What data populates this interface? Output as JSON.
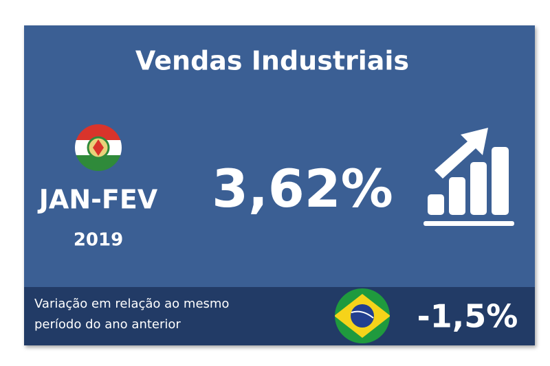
{
  "card": {
    "title": "Vendas Industriais",
    "period": "JAN-FEV",
    "year": "2019",
    "value": "3,62%",
    "footer": {
      "note_lines": [
        "Variação em relação ao mesmo",
        "período do ano anterior"
      ],
      "national_value": "-1,5%"
    }
  }
}
